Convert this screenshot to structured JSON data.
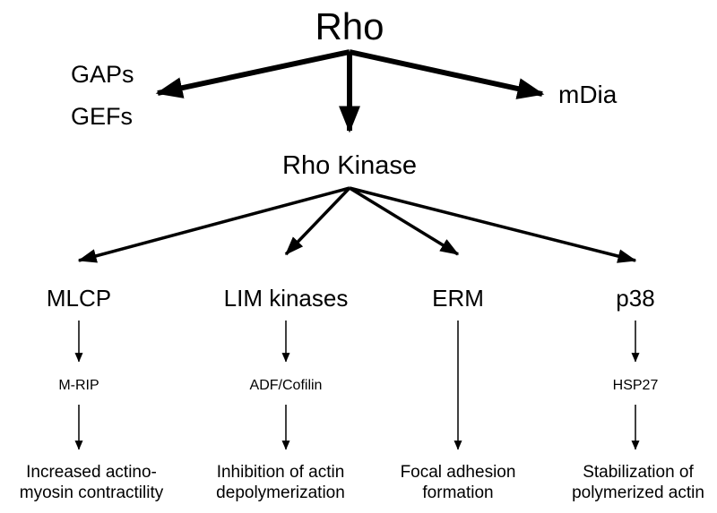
{
  "root": {
    "label": "Rho"
  },
  "left_regulators": [
    "GAPs",
    "GEFs"
  ],
  "right_effector": "mDia",
  "kinase": "Rho Kinase",
  "branches": [
    {
      "target": "MLCP",
      "mid": "M-RIP",
      "outcome": [
        "Increased actino-",
        "myosin contractility"
      ]
    },
    {
      "target": "LIM kinases",
      "mid": "ADF/Cofilin",
      "outcome": [
        "Inhibition of actin",
        "depolymerization"
      ]
    },
    {
      "target": "ERM",
      "mid": "",
      "outcome": [
        "Focal adhesion",
        "formation"
      ]
    },
    {
      "target": "p38",
      "mid": "HSP27",
      "outcome": [
        "Stabilization of",
        "polymerized actin"
      ]
    }
  ],
  "colors": {
    "ink": "#000000",
    "background": "#ffffff"
  }
}
